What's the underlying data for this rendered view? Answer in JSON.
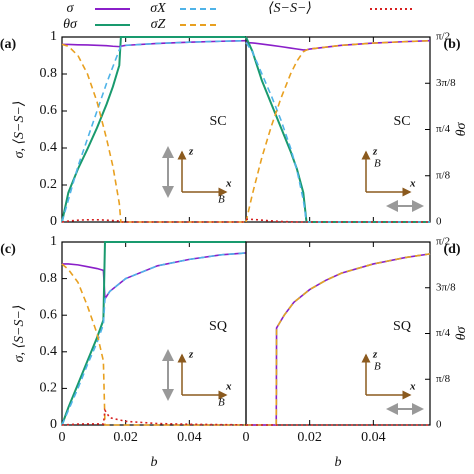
{
  "legend": [
    {
      "name": "σ",
      "color": "#8a1fc9",
      "dash": "none"
    },
    {
      "name": "θσ",
      "color": "#199a6e",
      "dash": "none",
      "axis": "y2"
    },
    {
      "name": "σX",
      "color": "#4fb3e8",
      "dash": "6,4"
    },
    {
      "name": "σZ",
      "color": "#e8a020",
      "dash": "6,4"
    },
    {
      "name": "⟨S−S−⟩",
      "color": "#d62020",
      "dash": "2,3"
    }
  ],
  "chart_data": [
    {
      "type": "line",
      "panel_label": "(a)",
      "inset": {
        "text": "SC",
        "axes": [
          "z",
          "x"
        ],
        "field": "B",
        "field_vertical": false
      },
      "ylabel": "σ, ⟨S−S−⟩",
      "xlim": [
        0,
        0.0578
      ],
      "ylim": [
        0,
        1
      ],
      "y2lim": [
        0,
        1.5708
      ],
      "xticks": [
        0,
        0.02,
        0.04
      ],
      "yticks": [
        0,
        0.2,
        0.4,
        0.6,
        0.8,
        1
      ],
      "x": [
        0,
        0.002,
        0.005,
        0.008,
        0.011,
        0.014,
        0.016,
        0.018,
        0.0185,
        0.02,
        0.03,
        0.04,
        0.05,
        0.0578
      ],
      "series": [
        {
          "values": [
            0.96,
            0.96,
            0.958,
            0.957,
            0.955,
            0.953,
            0.95,
            0.948,
            0.95,
            0.955,
            0.965,
            0.972,
            0.977,
            0.98
          ]
        },
        {
          "values": [
            0,
            0.25,
            0.45,
            0.62,
            0.8,
            1.0,
            1.15,
            1.33,
            1.5708,
            1.5708,
            1.5708,
            1.5708,
            1.5708,
            1.5708
          ]
        },
        {
          "values": [
            0,
            0.12,
            0.3,
            0.45,
            0.6,
            0.75,
            0.84,
            0.93,
            0.95,
            0.955,
            0.965,
            0.972,
            0.977,
            0.98
          ]
        },
        {
          "values": [
            0.96,
            0.95,
            0.9,
            0.8,
            0.65,
            0.45,
            0.3,
            0.1,
            0,
            0,
            0,
            0,
            0,
            0
          ]
        },
        {
          "values": [
            0,
            0.005,
            0.01,
            0.012,
            0.012,
            0.01,
            0.008,
            0.005,
            0,
            0,
            0,
            0,
            0,
            0
          ]
        }
      ]
    },
    {
      "type": "line",
      "panel_label": "(b)",
      "inset": {
        "text": "SC",
        "axes": [
          "z",
          "x"
        ],
        "field": "B",
        "field_vertical": true
      },
      "y2label": "θσ",
      "xlim": [
        0,
        0.0578
      ],
      "ylim": [
        0,
        1
      ],
      "y2lim": [
        0,
        1.5708
      ],
      "xticks": [
        0,
        0.02,
        0.04
      ],
      "y2ticks": [
        0,
        {
          "value": 0.3927,
          "label": "π/8"
        },
        {
          "value": 0.7854,
          "label": "π/4"
        },
        {
          "value": 1.1781,
          "label": "3π/8"
        },
        {
          "value": 1.5708,
          "label": "π/2"
        }
      ],
      "x": [
        0,
        0.002,
        0.005,
        0.008,
        0.011,
        0.014,
        0.016,
        0.018,
        0.019,
        0.02,
        0.03,
        0.04,
        0.05,
        0.0578
      ],
      "series": [
        {
          "values": [
            0.97,
            0.968,
            0.962,
            0.955,
            0.948,
            0.94,
            0.935,
            0.93,
            0.93,
            0.935,
            0.955,
            0.967,
            0.975,
            0.98
          ]
        },
        {
          "values": [
            1.5708,
            1.45,
            1.2,
            1.0,
            0.8,
            0.6,
            0.45,
            0.25,
            0,
            0,
            0,
            0,
            0,
            0
          ]
        },
        {
          "values": [
            0.97,
            0.92,
            0.8,
            0.68,
            0.55,
            0.4,
            0.28,
            0.12,
            0,
            0,
            0,
            0,
            0,
            0
          ]
        },
        {
          "values": [
            0,
            0.15,
            0.35,
            0.52,
            0.67,
            0.8,
            0.87,
            0.92,
            0.93,
            0.935,
            0.955,
            0.967,
            0.975,
            0.98
          ]
        },
        {
          "values": [
            0.015,
            0.014,
            0.01,
            0.006,
            0.003,
            0.001,
            0,
            0,
            0,
            0,
            0,
            0,
            0,
            0
          ]
        }
      ]
    },
    {
      "type": "line",
      "panel_label": "(c)",
      "inset": {
        "text": "SQ",
        "axes": [
          "z",
          "x"
        ],
        "field": "B",
        "field_vertical": false
      },
      "ylabel": "σ, ⟨S−S−⟩",
      "xlabel": "b",
      "xlim": [
        0,
        0.0578
      ],
      "ylim": [
        0,
        1
      ],
      "y2lim": [
        0,
        1.5708
      ],
      "xticks": [
        0,
        0.02,
        0.04
      ],
      "yticks": [
        0,
        0.2,
        0.4,
        0.6,
        0.8,
        1
      ],
      "x": [
        0,
        0.002,
        0.005,
        0.008,
        0.011,
        0.013,
        0.0135,
        0.015,
        0.02,
        0.03,
        0.04,
        0.05,
        0.0578
      ],
      "series": [
        {
          "values": [
            0.88,
            0.88,
            0.875,
            0.865,
            0.855,
            0.845,
            0.69,
            0.73,
            0.8,
            0.87,
            0.905,
            0.93,
            0.94
          ]
        },
        {
          "values": [
            0,
            0.15,
            0.35,
            0.55,
            0.75,
            0.9,
            1.5708,
            1.5708,
            1.5708,
            1.5708,
            1.5708,
            1.5708,
            1.5708
          ]
        },
        {
          "values": [
            0,
            0.08,
            0.2,
            0.33,
            0.45,
            0.55,
            0.69,
            0.73,
            0.8,
            0.87,
            0.905,
            0.93,
            0.94
          ]
        },
        {
          "values": [
            0.88,
            0.85,
            0.78,
            0.65,
            0.5,
            0.35,
            0,
            0,
            0,
            0,
            0,
            0,
            0
          ]
        },
        {
          "values": [
            0,
            0.002,
            0.005,
            0.006,
            0.006,
            0.005,
            0.08,
            0.04,
            0.02,
            0.008,
            0.004,
            0.002,
            0.001
          ]
        }
      ]
    },
    {
      "type": "line",
      "panel_label": "(d)",
      "inset": {
        "text": "SQ",
        "axes": [
          "z",
          "x"
        ],
        "field": "B",
        "field_vertical": true
      },
      "y2label": "θσ",
      "xlabel": "b",
      "xlim": [
        0,
        0.0578
      ],
      "ylim": [
        0,
        1
      ],
      "y2lim": [
        0,
        1.5708
      ],
      "xticks": [
        0,
        0.02,
        0.04
      ],
      "y2ticks": [
        0,
        {
          "value": 0.3927,
          "label": "π/8"
        },
        {
          "value": 0.7854,
          "label": "π/4"
        },
        {
          "value": 1.1781,
          "label": "3π/8"
        },
        {
          "value": 1.5708,
          "label": "π/2"
        }
      ],
      "x": [
        0,
        0.0095,
        0.0096,
        0.012,
        0.015,
        0.02,
        0.025,
        0.03,
        0.04,
        0.05,
        0.0578
      ],
      "series": [
        {
          "values": [
            0,
            0,
            0.53,
            0.6,
            0.67,
            0.74,
            0.79,
            0.83,
            0.88,
            0.915,
            0.935
          ]
        },
        {
          "values": [
            null,
            null,
            null,
            null,
            null,
            null,
            null,
            null,
            null,
            null,
            null
          ]
        },
        {
          "values": [
            0,
            0,
            0.53,
            0.6,
            0.67,
            0.74,
            0.79,
            0.83,
            0.88,
            0.915,
            0.935
          ]
        },
        {
          "values": [
            0,
            0,
            0.53,
            0.6,
            0.67,
            0.74,
            0.79,
            0.83,
            0.88,
            0.915,
            0.935
          ]
        },
        {
          "values": [
            0,
            0,
            0,
            0,
            0,
            0,
            0,
            0,
            0,
            0,
            0
          ]
        }
      ]
    }
  ]
}
